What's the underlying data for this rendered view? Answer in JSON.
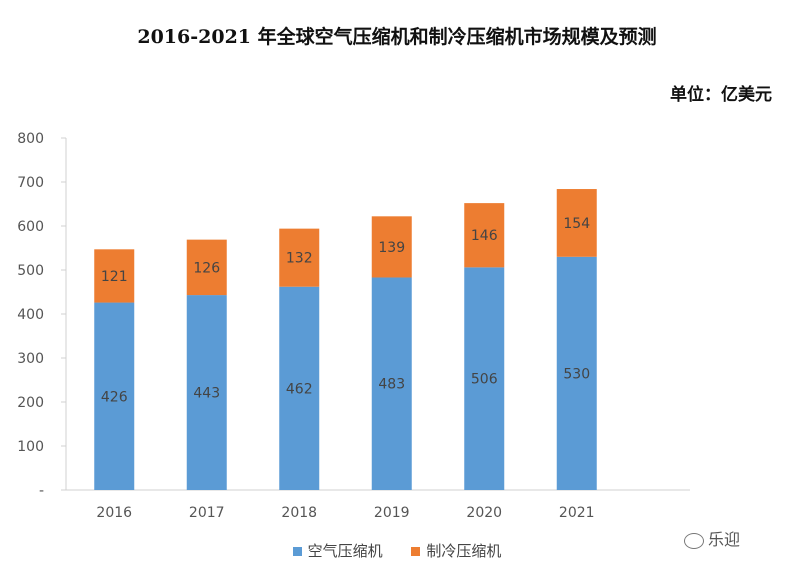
{
  "chart_data": {
    "type": "bar",
    "stacked": true,
    "title": "2016-2021 年全球空气压缩机和制冷压缩机市场规模及预测",
    "unit": "单位：亿美元",
    "categories": [
      "2016",
      "2017",
      "2018",
      "2019",
      "2020",
      "2021"
    ],
    "series": [
      {
        "name": "空气压缩机",
        "color": "#5B9BD5",
        "values": [
          426,
          443,
          462,
          483,
          506,
          530
        ]
      },
      {
        "name": "制冷压缩机",
        "color": "#ED7D31",
        "values": [
          121,
          126,
          132,
          139,
          146,
          154
        ]
      }
    ],
    "ylim": [
      0,
      800
    ],
    "yticks": [
      "-",
      "100",
      "200",
      "300",
      "400",
      "500",
      "600",
      "700",
      "800"
    ],
    "grid": false,
    "legend": "bottom"
  },
  "watermark": {
    "text": "乐迎",
    "icon": "wechat-icon"
  }
}
